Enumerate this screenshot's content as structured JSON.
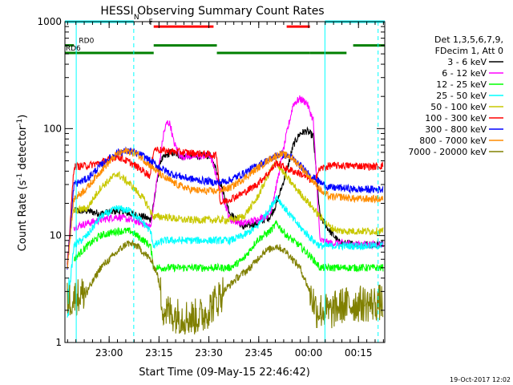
{
  "chart_data": {
    "type": "line",
    "title": "HESSI Observing Summary Count Rates",
    "xlabel": "Start Time (09-May-15 22:46:42)",
    "ylabel_main": "Count Rate (s",
    "ylabel_sup1": "-1",
    "ylabel_mid": " detector",
    "ylabel_sup2": "-1",
    "ylabel_end": ")",
    "yscale": "log",
    "ylim": [
      1,
      1000
    ],
    "xlim_minutes": [
      -15.7,
      80.5
    ],
    "x_unit": "minutes after 23:02:24 (start offset)",
    "x_ticks": [
      {
        "m": -2.4,
        "label": "23:00"
      },
      {
        "m": 12.6,
        "label": "23:15"
      },
      {
        "m": 27.6,
        "label": "23:30"
      },
      {
        "m": 42.6,
        "label": "23:45"
      },
      {
        "m": 57.6,
        "label": "00:00"
      },
      {
        "m": 72.6,
        "label": "00:15"
      }
    ],
    "y_ticks": [
      {
        "v": 1,
        "label": "1"
      },
      {
        "v": 10,
        "label": "10"
      },
      {
        "v": 100,
        "label": "100"
      },
      {
        "v": 1000,
        "label": "1000"
      }
    ],
    "legend_header": [
      "Det 1,3,5,6,7,9,",
      "FDecim 1, Att 0"
    ],
    "series": [
      {
        "name": "3 - 6 keV",
        "color": "#000000",
        "points": [
          [
            -13,
            17
          ],
          [
            -9,
            17
          ],
          [
            -5,
            16
          ],
          [
            0,
            17
          ],
          [
            4,
            16
          ],
          [
            8,
            15
          ],
          [
            10,
            14
          ],
          [
            11,
            20
          ],
          [
            13,
            50
          ],
          [
            16,
            60
          ],
          [
            20,
            55
          ],
          [
            24,
            56
          ],
          [
            28,
            56
          ],
          [
            30,
            40
          ],
          [
            34,
            16
          ],
          [
            38,
            12
          ],
          [
            42,
            13
          ],
          [
            46,
            15
          ],
          [
            48,
            20
          ],
          [
            51,
            40
          ],
          [
            53,
            70
          ],
          [
            55,
            90
          ],
          [
            57,
            95
          ],
          [
            59,
            85
          ],
          [
            61,
            15
          ],
          [
            64,
            11
          ],
          [
            67,
            8.5
          ],
          [
            72,
            8.3
          ],
          [
            77,
            8.2
          ],
          [
            80,
            8.4
          ]
        ]
      },
      {
        "name": "6 - 12 keV",
        "color": "#ff00ff",
        "points": [
          [
            -13,
            12
          ],
          [
            -9,
            13
          ],
          [
            -5,
            14
          ],
          [
            0,
            15
          ],
          [
            4,
            14
          ],
          [
            8,
            13
          ],
          [
            10,
            12
          ],
          [
            11,
            20
          ],
          [
            13,
            55
          ],
          [
            14,
            90
          ],
          [
            15,
            115
          ],
          [
            16,
            110
          ],
          [
            17,
            75
          ],
          [
            19,
            55
          ],
          [
            24,
            55
          ],
          [
            28,
            56
          ],
          [
            30,
            35
          ],
          [
            34,
            14
          ],
          [
            38,
            13
          ],
          [
            42,
            14
          ],
          [
            46,
            16
          ],
          [
            48,
            30
          ],
          [
            51,
            90
          ],
          [
            53,
            170
          ],
          [
            55,
            190
          ],
          [
            57,
            175
          ],
          [
            59,
            120
          ],
          [
            61,
            9
          ],
          [
            64,
            8.5
          ],
          [
            67,
            8.5
          ],
          [
            72,
            8.3
          ],
          [
            77,
            8.2
          ],
          [
            80,
            8.3
          ]
        ]
      },
      {
        "name": "12 - 25 keV",
        "color": "#00ff00",
        "points": [
          [
            -13,
            6
          ],
          [
            -9,
            8
          ],
          [
            -5,
            10
          ],
          [
            0,
            11
          ],
          [
            4,
            11
          ],
          [
            8,
            9
          ],
          [
            10,
            8
          ],
          [
            11,
            5
          ],
          [
            14,
            5
          ],
          [
            20,
            5
          ],
          [
            26,
            5
          ],
          [
            30,
            5
          ],
          [
            34,
            5
          ],
          [
            38,
            6
          ],
          [
            42,
            9
          ],
          [
            46,
            11
          ],
          [
            48,
            13
          ],
          [
            51,
            10
          ],
          [
            55,
            8
          ],
          [
            59,
            6
          ],
          [
            61,
            5
          ],
          [
            64,
            5
          ],
          [
            67,
            5
          ],
          [
            72,
            5
          ],
          [
            77,
            5
          ],
          [
            80,
            5
          ]
        ]
      },
      {
        "name": "25 - 50 keV",
        "color": "#00ffff",
        "points": [
          [
            -15,
            2
          ],
          [
            -13,
            8
          ],
          [
            -9,
            10
          ],
          [
            -5,
            15
          ],
          [
            0,
            18
          ],
          [
            4,
            17
          ],
          [
            8,
            13
          ],
          [
            10,
            11
          ],
          [
            11,
            8
          ],
          [
            14,
            9
          ],
          [
            20,
            9
          ],
          [
            26,
            9
          ],
          [
            30,
            9
          ],
          [
            34,
            9
          ],
          [
            38,
            10
          ],
          [
            42,
            12
          ],
          [
            46,
            18
          ],
          [
            48,
            23
          ],
          [
            51,
            17
          ],
          [
            55,
            12
          ],
          [
            59,
            9
          ],
          [
            61,
            8
          ],
          [
            64,
            8
          ],
          [
            67,
            8
          ],
          [
            72,
            8
          ],
          [
            77,
            8
          ],
          [
            80,
            8
          ]
        ]
      },
      {
        "name": "50 - 100 keV",
        "color": "#c8c800",
        "points": [
          [
            -13,
            17
          ],
          [
            -9,
            18
          ],
          [
            -5,
            28
          ],
          [
            0,
            38
          ],
          [
            4,
            30
          ],
          [
            8,
            22
          ],
          [
            10,
            17
          ],
          [
            11,
            15
          ],
          [
            14,
            15
          ],
          [
            20,
            14
          ],
          [
            26,
            14
          ],
          [
            30,
            14
          ],
          [
            34,
            14
          ],
          [
            38,
            15
          ],
          [
            42,
            22
          ],
          [
            46,
            40
          ],
          [
            48,
            48
          ],
          [
            51,
            35
          ],
          [
            55,
            25
          ],
          [
            59,
            18
          ],
          [
            61,
            15
          ],
          [
            64,
            12
          ],
          [
            67,
            11
          ],
          [
            72,
            11
          ],
          [
            77,
            11
          ],
          [
            80,
            11
          ]
        ]
      },
      {
        "name": "100 - 300 keV",
        "color": "#ff0000",
        "points": [
          [
            -15,
            5
          ],
          [
            -13,
            44
          ],
          [
            -9,
            45
          ],
          [
            -5,
            48
          ],
          [
            0,
            55
          ],
          [
            4,
            48
          ],
          [
            8,
            40
          ],
          [
            10,
            36
          ],
          [
            11,
            65
          ],
          [
            14,
            62
          ],
          [
            20,
            60
          ],
          [
            26,
            58
          ],
          [
            30,
            56
          ],
          [
            31,
            20
          ],
          [
            34,
            22
          ],
          [
            38,
            25
          ],
          [
            42,
            30
          ],
          [
            46,
            40
          ],
          [
            48,
            48
          ],
          [
            51,
            42
          ],
          [
            55,
            38
          ],
          [
            59,
            32
          ],
          [
            61,
            42
          ],
          [
            64,
            45
          ],
          [
            67,
            45
          ],
          [
            72,
            45
          ],
          [
            77,
            44
          ],
          [
            80,
            45
          ]
        ]
      },
      {
        "name": "300 - 800 keV",
        "color": "#0000ff",
        "points": [
          [
            -15,
            5
          ],
          [
            -13,
            30
          ],
          [
            -9,
            34
          ],
          [
            -5,
            45
          ],
          [
            0,
            60
          ],
          [
            4,
            62
          ],
          [
            8,
            55
          ],
          [
            12,
            45
          ],
          [
            16,
            38
          ],
          [
            20,
            35
          ],
          [
            24,
            33
          ],
          [
            28,
            32
          ],
          [
            30,
            31
          ],
          [
            34,
            33
          ],
          [
            38,
            38
          ],
          [
            42,
            45
          ],
          [
            46,
            52
          ],
          [
            49,
            58
          ],
          [
            52,
            55
          ],
          [
            55,
            45
          ],
          [
            59,
            35
          ],
          [
            62,
            30
          ],
          [
            64,
            28
          ],
          [
            67,
            28
          ],
          [
            72,
            27
          ],
          [
            77,
            27
          ],
          [
            80,
            27
          ]
        ]
      },
      {
        "name": "800 - 7000 keV",
        "color": "#ff8c00",
        "points": [
          [
            -15,
            5
          ],
          [
            -13,
            22
          ],
          [
            -9,
            28
          ],
          [
            -5,
            40
          ],
          [
            0,
            58
          ],
          [
            3,
            62
          ],
          [
            6,
            58
          ],
          [
            10,
            45
          ],
          [
            14,
            35
          ],
          [
            18,
            30
          ],
          [
            22,
            27
          ],
          [
            26,
            26
          ],
          [
            30,
            26
          ],
          [
            34,
            28
          ],
          [
            38,
            34
          ],
          [
            42,
            42
          ],
          [
            46,
            52
          ],
          [
            49,
            58
          ],
          [
            52,
            55
          ],
          [
            55,
            45
          ],
          [
            59,
            32
          ],
          [
            62,
            25
          ],
          [
            64,
            23
          ],
          [
            67,
            23
          ],
          [
            72,
            22
          ],
          [
            77,
            22
          ],
          [
            80,
            22
          ]
        ]
      },
      {
        "name": "7000 - 20000 keV",
        "color": "#808000",
        "points": [
          [
            -15,
            2.5
          ],
          [
            -13,
            2.6
          ],
          [
            -9,
            3
          ],
          [
            -5,
            5
          ],
          [
            0,
            7
          ],
          [
            3,
            8.5
          ],
          [
            6,
            8
          ],
          [
            10,
            6
          ],
          [
            12,
            4.5
          ],
          [
            14,
            2
          ],
          [
            18,
            1.8
          ],
          [
            22,
            1.7
          ],
          [
            26,
            1.8
          ],
          [
            30,
            2.5
          ],
          [
            32,
            3
          ],
          [
            36,
            4
          ],
          [
            40,
            5
          ],
          [
            44,
            7
          ],
          [
            48,
            8
          ],
          [
            51,
            7
          ],
          [
            55,
            5
          ],
          [
            58,
            3
          ],
          [
            60,
            2
          ],
          [
            62,
            2
          ],
          [
            64,
            1.9
          ],
          [
            67,
            2.2
          ],
          [
            72,
            2.3
          ],
          [
            77,
            2.3
          ],
          [
            80,
            2.4
          ]
        ]
      }
    ],
    "state_bars": [
      {
        "label": "N",
        "color": "#00ffff",
        "level": 1000,
        "segments": [
          [
            -15.7,
            5
          ]
        ],
        "label_at": 5
      },
      {
        "label": "",
        "color": "#00ffff",
        "level": 1000,
        "segments": [
          [
            62.5,
            80.5
          ]
        ]
      },
      {
        "label": "F",
        "color": "#ff0000",
        "level": 900,
        "segments": [
          [
            11,
            29
          ],
          [
            51,
            58
          ]
        ],
        "label_at": 9.5
      },
      {
        "label": "RD0",
        "color": "#008000",
        "level": 600,
        "segments": [
          [
            -15.7,
            -13
          ],
          [
            11,
            30
          ],
          [
            71,
            80.5
          ]
        ],
        "label_at": -11.5
      },
      {
        "label": "RD6",
        "color": "#008000",
        "level": 510,
        "segments": [
          [
            -15.7,
            11
          ],
          [
            30,
            58
          ],
          [
            58,
            69
          ]
        ],
        "label_at": -15.5
      }
    ],
    "vlines_solid": [
      -12.3,
      62.5
    ],
    "vlines_dashed": [
      5,
      78.5
    ],
    "timestamp": "19-Oct-2017 12:02",
    "grid": false,
    "legend_placement": "right"
  }
}
